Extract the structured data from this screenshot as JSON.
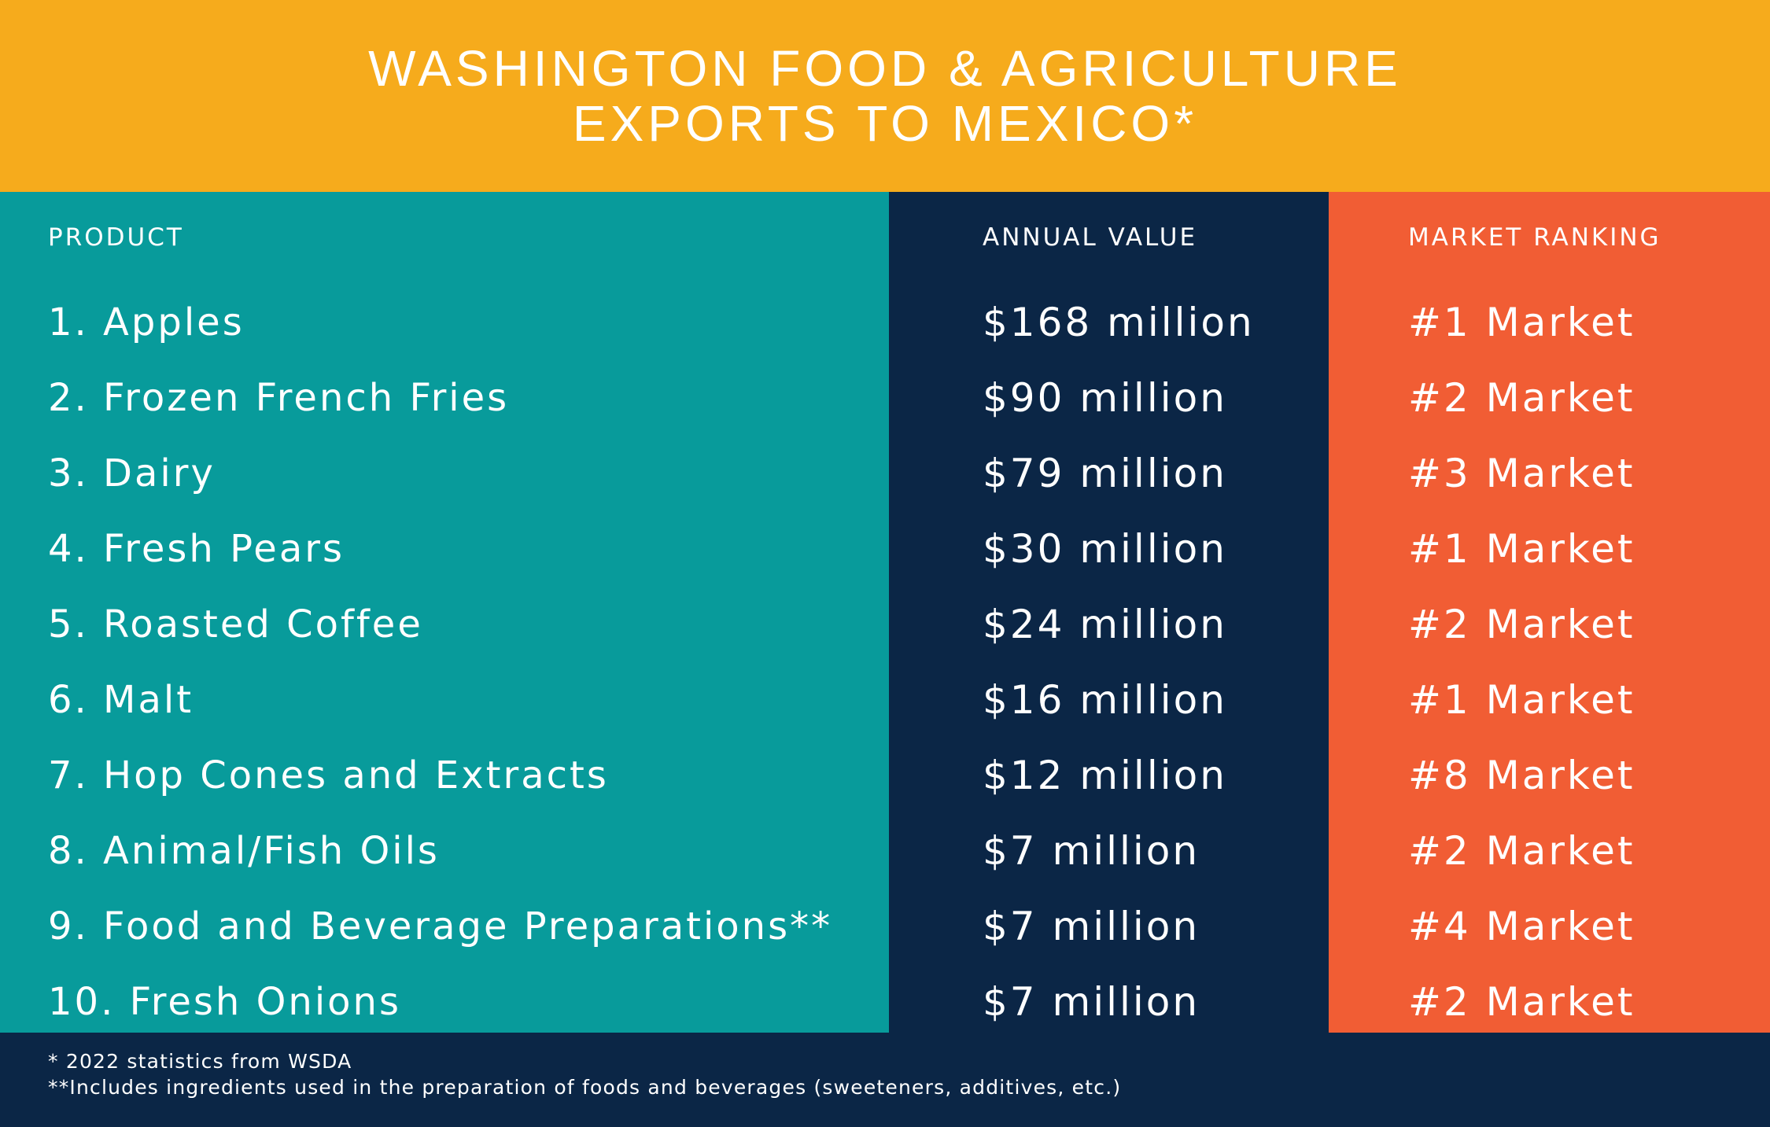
{
  "header": {
    "title_line1": "WASHINGTON FOOD & AGRICULTURE",
    "title_line2": "EXPORTS TO MEXICO*"
  },
  "columns": {
    "product": "PRODUCT",
    "annual_value": "ANNUAL VALUE",
    "market_ranking": "MARKET RANKING"
  },
  "rows": [
    {
      "product": "1.  Apples",
      "value": "$168 million",
      "ranking": "#1 Market"
    },
    {
      "product": "2. Frozen French Fries",
      "value": "$90 million",
      "ranking": "#2 Market"
    },
    {
      "product": "3. Dairy",
      "value": "$79 million",
      "ranking": "#3 Market"
    },
    {
      "product": "4. Fresh Pears",
      "value": "$30 million",
      "ranking": "#1 Market"
    },
    {
      "product": "5.  Roasted Coffee",
      "value": "$24 million",
      "ranking": "#2 Market"
    },
    {
      "product": "6. Malt",
      "value": "$16 million",
      "ranking": "#1 Market"
    },
    {
      "product": "7. Hop Cones and Extracts",
      "value": "$12 million",
      "ranking": "#8 Market"
    },
    {
      "product": "8. Animal/Fish Oils",
      "value": "$7 million",
      "ranking": "#2 Market"
    },
    {
      "product": "9. Food and Beverage Preparations**",
      "value": "$7 million",
      "ranking": "#4 Market"
    },
    {
      "product": "10. Fresh Onions",
      "value": "$7 million",
      "ranking": "#2 Market"
    }
  ],
  "footnotes": {
    "note1": "* 2022 statistics from WSDA",
    "note2": "**Includes ingredients used in the preparation of foods and beverages (sweeteners, additives, etc.)"
  },
  "colors": {
    "header_bg": "#f6ab1c",
    "product_bg": "#089b9b",
    "value_bg": "#0b2646",
    "ranking_bg": "#f15d34"
  }
}
